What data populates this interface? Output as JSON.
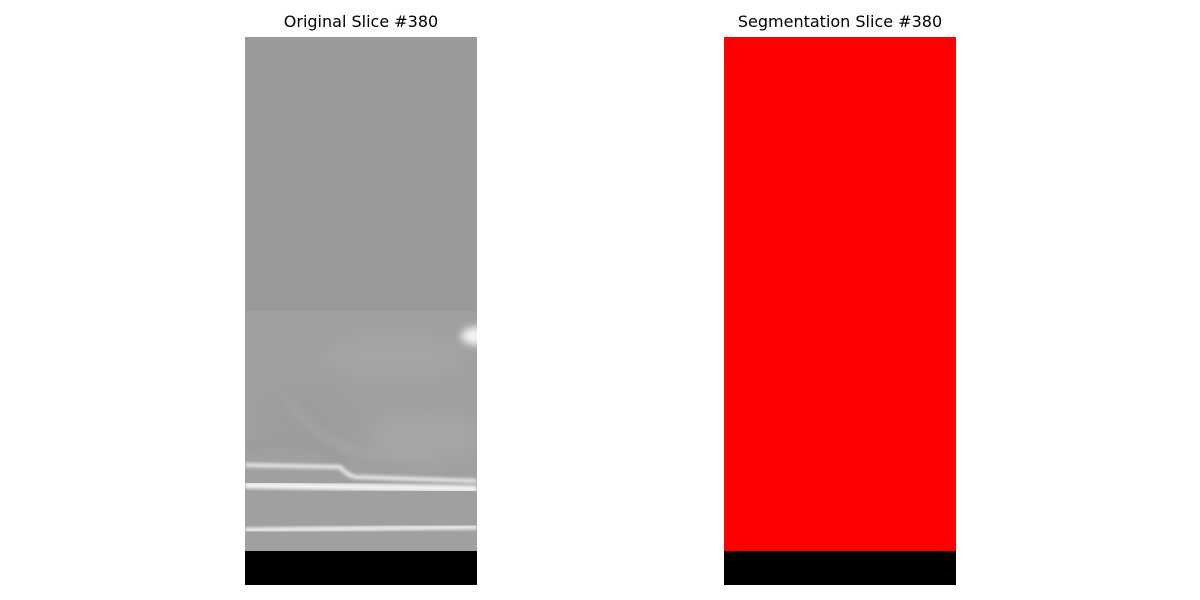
{
  "panels": {
    "original": {
      "title": "Original Slice #380"
    },
    "segmentation": {
      "title": "Segmentation Slice #380"
    }
  },
  "colors": {
    "background": "#ffffff",
    "gray_upper": "#9a9a9a",
    "gray_lower": "#a0a0a0",
    "bright_band": "#f2f2f2",
    "segmentation_fill": "#ff0000",
    "padding_fill": "#000000"
  }
}
